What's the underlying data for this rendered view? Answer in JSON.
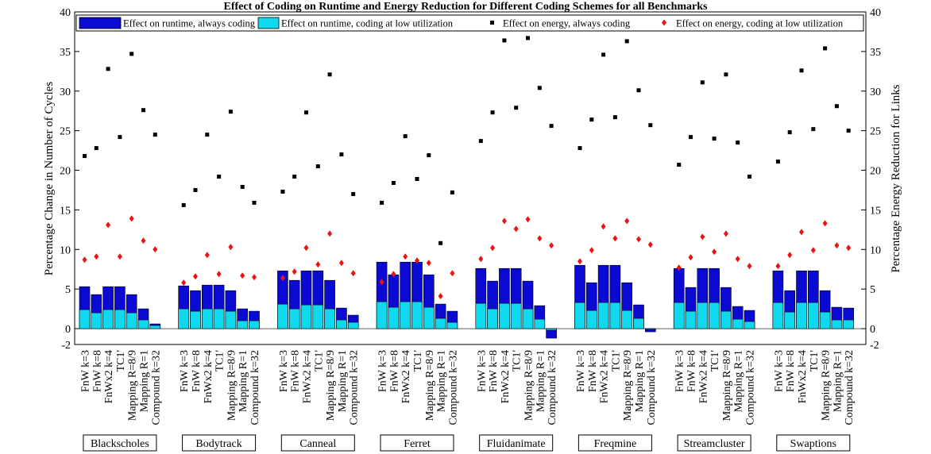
{
  "chart_data": {
    "type": "bar",
    "title": "Effect of Coding on Runtime and Energy Reduction for Different Coding Schemes for all Benchmarks",
    "ylabel": "Percentage Change in Number of Cycles",
    "ylabel_right": "Percentage Energy Reduction for Links",
    "ylim": [
      -2,
      40
    ],
    "yticks": [
      -2,
      0,
      5,
      10,
      15,
      20,
      25,
      30,
      35,
      40
    ],
    "schemes": [
      "FnW k=3",
      "FnW k=8",
      "FnWx2 k=4",
      "TC1'",
      "Mapping R=8/9",
      "Mapping R=1",
      "Compound k=32"
    ],
    "legend": [
      {
        "label": "Effect on runtime, always coding",
        "marker": "bar",
        "color": "#0a0ad2"
      },
      {
        "label": "Effect on runtime, coding at low utilization",
        "marker": "bar",
        "color": "#10d8ee"
      },
      {
        "label": "Effect on energy, always coding",
        "marker": "square",
        "color": "#000000"
      },
      {
        "label": "Effect on energy, coding at low utilization",
        "marker": "diamond",
        "color": "#ee1111"
      }
    ],
    "groups": [
      {
        "name": "Blackscholes",
        "runtime_always": [
          5.3,
          4.3,
          5.3,
          5.3,
          4.3,
          2.5,
          0.6
        ],
        "runtime_low": [
          2.4,
          2.0,
          2.4,
          2.4,
          2.0,
          1.1,
          0.4
        ],
        "energy_always": [
          21.8,
          22.8,
          32.8,
          24.2,
          34.7,
          27.6,
          24.5
        ],
        "energy_low": [
          8.7,
          9.1,
          13.1,
          9.1,
          13.9,
          11.1,
          10.0
        ]
      },
      {
        "name": "Bodytrack",
        "runtime_always": [
          5.4,
          4.8,
          5.5,
          5.5,
          4.8,
          2.5,
          2.2
        ],
        "runtime_low": [
          2.5,
          2.2,
          2.5,
          2.5,
          2.2,
          1.0,
          1.0
        ],
        "energy_always": [
          15.6,
          17.5,
          24.5,
          19.2,
          27.4,
          17.9,
          15.9
        ],
        "energy_low": [
          5.8,
          6.6,
          9.3,
          6.9,
          10.3,
          6.7,
          6.5
        ]
      },
      {
        "name": "Canneal",
        "runtime_always": [
          7.3,
          6.1,
          7.3,
          7.3,
          6.1,
          2.6,
          1.7
        ],
        "runtime_low": [
          3.1,
          2.5,
          3.0,
          3.0,
          2.5,
          1.1,
          0.8
        ],
        "energy_always": [
          17.3,
          19.2,
          27.3,
          20.5,
          32.1,
          22.0,
          17.0
        ],
        "energy_low": [
          6.4,
          7.2,
          10.2,
          8.1,
          12.0,
          8.3,
          7.0
        ]
      },
      {
        "name": "Ferret",
        "runtime_always": [
          8.4,
          6.8,
          8.4,
          8.4,
          6.8,
          3.1,
          2.2
        ],
        "runtime_low": [
          3.4,
          2.7,
          3.4,
          3.4,
          2.7,
          1.3,
          0.8
        ],
        "energy_always": [
          15.9,
          18.4,
          24.3,
          18.9,
          21.9,
          10.8,
          17.2
        ],
        "energy_low": [
          5.9,
          6.9,
          9.1,
          8.6,
          8.3,
          4.1,
          7.0
        ]
      },
      {
        "name": "Fluidanimate",
        "runtime_always": [
          7.6,
          6.0,
          7.6,
          7.6,
          6.0,
          2.9,
          -1.2
        ],
        "runtime_low": [
          3.2,
          2.5,
          3.2,
          3.2,
          2.5,
          1.2,
          -0.2
        ],
        "energy_always": [
          23.7,
          27.3,
          36.4,
          27.9,
          36.7,
          30.4,
          25.6
        ],
        "energy_low": [
          8.8,
          10.2,
          13.6,
          12.6,
          13.8,
          11.4,
          10.5
        ]
      },
      {
        "name": "Freqmine",
        "runtime_always": [
          8.0,
          5.8,
          8.0,
          8.0,
          5.8,
          3.0,
          -0.4
        ],
        "runtime_low": [
          3.3,
          2.3,
          3.3,
          3.3,
          2.3,
          1.3,
          -0.1
        ],
        "energy_always": [
          22.8,
          26.4,
          34.6,
          26.7,
          36.3,
          30.1,
          25.7
        ],
        "energy_low": [
          8.5,
          9.9,
          12.9,
          11.4,
          13.6,
          11.3,
          10.6
        ]
      },
      {
        "name": "Streamcluster",
        "runtime_always": [
          7.6,
          5.2,
          7.6,
          7.6,
          5.2,
          2.8,
          2.3
        ],
        "runtime_low": [
          3.3,
          2.2,
          3.3,
          3.3,
          2.2,
          1.2,
          0.9
        ],
        "energy_always": [
          20.7,
          24.2,
          31.1,
          24.0,
          32.1,
          23.5,
          19.2
        ],
        "energy_low": [
          7.7,
          9.0,
          11.6,
          9.7,
          12.0,
          8.8,
          7.9
        ]
      },
      {
        "name": "Swaptions",
        "runtime_always": [
          7.3,
          4.8,
          7.3,
          7.3,
          4.8,
          2.7,
          2.6
        ],
        "runtime_low": [
          3.3,
          2.1,
          3.3,
          3.3,
          2.1,
          1.1,
          1.1
        ],
        "energy_always": [
          21.1,
          24.8,
          32.6,
          25.2,
          35.4,
          28.1,
          25.0
        ],
        "energy_low": [
          7.9,
          9.3,
          12.2,
          9.9,
          13.3,
          10.5,
          10.2
        ]
      }
    ]
  }
}
